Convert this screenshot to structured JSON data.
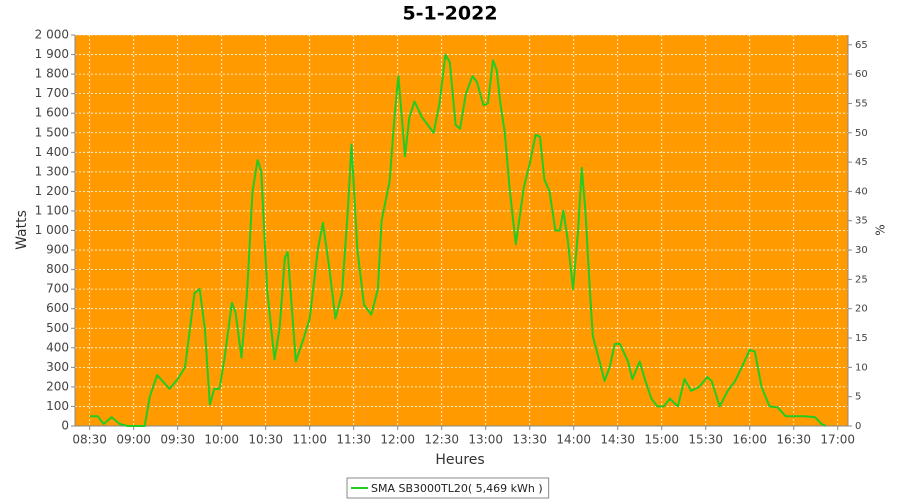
{
  "chart_data": {
    "type": "line",
    "title": "5-1-2022",
    "x_label": "Heures",
    "y_label": "Watts",
    "y2_label": "%",
    "x": [
      510,
      515.5,
      519.5,
      525,
      530.5,
      536,
      547.5,
      551,
      556,
      564.5,
      570,
      575,
      581.5,
      585,
      588.5,
      592,
      595,
      598.5,
      602,
      607,
      609.5,
      613.5,
      617.5,
      621,
      624.5,
      627,
      631,
      636,
      639.5,
      643,
      645,
      650.5,
      656,
      660,
      665.5,
      669,
      673.5,
      677.5,
      682,
      686,
      688.5,
      692.5,
      697,
      702,
      706.5,
      709,
      714.5,
      718,
      720.5,
      725,
      728,
      731.5,
      736.5,
      740.5,
      744.5,
      748.5,
      752.5,
      755.5,
      759.5,
      762.5,
      766.5,
      771,
      774,
      778.5,
      781.5,
      785,
      787.5,
      790,
      793,
      796.5,
      800.5,
      803,
      806,
      810,
      814,
      817,
      820,
      823.5,
      827.5,
      830.5,
      833,
      836,
      839.5,
      843,
      845.5,
      848,
      851,
      853,
      858,
      861,
      864.5,
      868,
      871.5,
      877,
      880,
      885,
      888.5,
      893,
      897,
      901.5,
      905.5,
      911,
      915.5,
      920,
      925.5,
      931,
      934,
      939.5,
      945,
      950,
      954.5,
      960,
      963.5,
      968,
      973.5,
      979,
      984.5,
      990.5,
      997.5,
      1004.5,
      1009,
      1012
    ],
    "series": [
      {
        "name": "SMA SB3000TL20( 5,469 kWh )",
        "color": "#22cc22",
        "values": [
          50,
          50,
          10,
          45,
          10,
          0,
          0,
          150,
          260,
          190,
          240,
          300,
          680,
          700,
          500,
          110,
          190,
          190,
          350,
          630,
          580,
          350,
          700,
          1200,
          1360,
          1300,
          700,
          340,
          500,
          860,
          890,
          330,
          450,
          550,
          900,
          1040,
          800,
          550,
          680,
          1100,
          1440,
          900,
          620,
          570,
          700,
          1050,
          1250,
          1600,
          1790,
          1380,
          1580,
          1660,
          1580,
          1540,
          1500,
          1650,
          1900,
          1860,
          1540,
          1520,
          1700,
          1790,
          1760,
          1640,
          1650,
          1870,
          1820,
          1650,
          1500,
          1200,
          930,
          1060,
          1220,
          1340,
          1490,
          1480,
          1260,
          1200,
          1000,
          1000,
          1100,
          950,
          700,
          1000,
          1320,
          1100,
          700,
          460,
          320,
          230,
          300,
          420,
          420,
          330,
          240,
          330,
          240,
          140,
          100,
          100,
          140,
          100,
          240,
          180,
          200,
          250,
          230,
          100,
          180,
          230,
          300,
          390,
          380,
          200,
          100,
          95,
          50,
          50,
          50,
          45,
          10,
          0
        ]
      }
    ],
    "xlim": [
      500,
      1027
    ],
    "xticks": [
      {
        "value": 510,
        "label": "08:30"
      },
      {
        "value": 540,
        "label": "09:00"
      },
      {
        "value": 570,
        "label": "09:30"
      },
      {
        "value": 600,
        "label": "10:00"
      },
      {
        "value": 630,
        "label": "10:30"
      },
      {
        "value": 660,
        "label": "11:00"
      },
      {
        "value": 690,
        "label": "11:30"
      },
      {
        "value": 720,
        "label": "12:00"
      },
      {
        "value": 750,
        "label": "12:30"
      },
      {
        "value": 780,
        "label": "13:00"
      },
      {
        "value": 810,
        "label": "13:30"
      },
      {
        "value": 840,
        "label": "14:00"
      },
      {
        "value": 870,
        "label": "14:30"
      },
      {
        "value": 900,
        "label": "15:00"
      },
      {
        "value": 930,
        "label": "15:30"
      },
      {
        "value": 960,
        "label": "16:00"
      },
      {
        "value": 990,
        "label": "16:30"
      },
      {
        "value": 1020,
        "label": "17:00"
      }
    ],
    "ylim": [
      0,
      2000
    ],
    "yticks": [
      0,
      100,
      200,
      300,
      400,
      500,
      600,
      700,
      800,
      900,
      {
        "value": 1000,
        "label": "1 000"
      },
      {
        "value": 1100,
        "label": "1 100"
      },
      {
        "value": 1200,
        "label": "1 200"
      },
      {
        "value": 1300,
        "label": "1 300"
      },
      {
        "value": 1400,
        "label": "1 400"
      },
      {
        "value": 1500,
        "label": "1 500"
      },
      {
        "value": 1600,
        "label": "1 600"
      },
      {
        "value": 1700,
        "label": "1 700"
      },
      {
        "value": 1800,
        "label": "1 800"
      },
      {
        "value": 1900,
        "label": "1 900"
      },
      {
        "value": 2000,
        "label": "2 000"
      }
    ],
    "y2lim": [
      0,
      66.67
    ],
    "y2ticks": [
      0,
      5,
      10,
      15,
      20,
      25,
      30,
      35,
      40,
      45,
      50,
      55,
      60,
      65
    ],
    "grid": true,
    "plot_background": "#ff9a00",
    "legend": "bottom"
  }
}
